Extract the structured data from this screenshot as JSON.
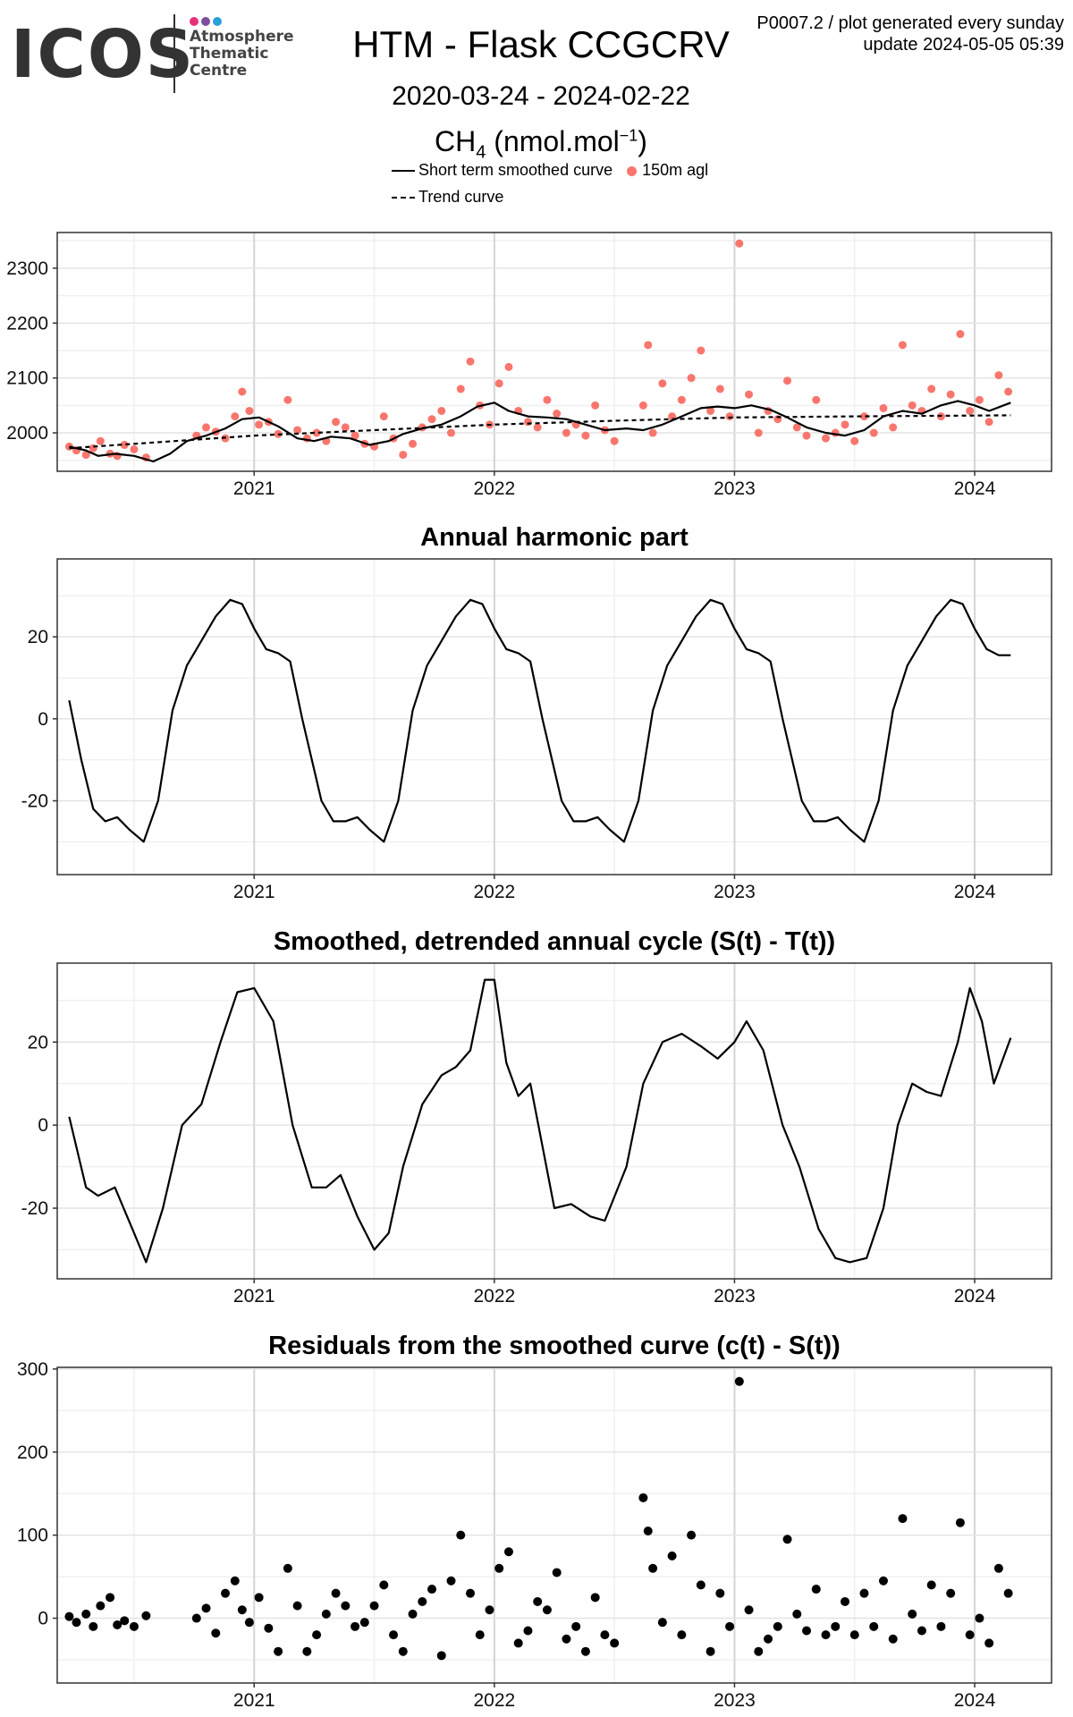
{
  "header": {
    "logo_text": "ICOS",
    "logo_subtitle_1": "Atmosphere",
    "logo_subtitle_2": "Thematic",
    "logo_subtitle_3": "Centre",
    "logo_dot_colors": [
      "#e6317a",
      "#7d4ea0",
      "#2b9fd8"
    ],
    "title": "HTM - Flask CCGCRV",
    "date_range": "2020-03-24 - 2024-02-22",
    "species_main": "CH",
    "species_sub": "4",
    "species_unit": " (nmol.mol",
    "species_sup": "−1",
    "species_close": ")",
    "notice_line1": "P0007.2 / plot generated every sunday",
    "notice_line2": "update  2024-05-05 05:39"
  },
  "legend": {
    "smooth_label": "Short term smoothed curve",
    "points_label": "150m agl",
    "trend_label": "Trend curve",
    "points_color": "#F8766D"
  },
  "chart_data": [
    {
      "type": "scatter",
      "title": "",
      "xlabel": "",
      "ylabel": "",
      "xlim": [
        2020.18,
        2024.32
      ],
      "ylim": [
        1930,
        2365
      ],
      "xticks": [
        2021,
        2022,
        2023,
        2024
      ],
      "xtick_labels": [
        "2021",
        "2022",
        "2023",
        "2024"
      ],
      "yticks": [
        2000,
        2100,
        2200,
        2300
      ],
      "ytick_labels": [
        "2000",
        "2100",
        "2200",
        "2300"
      ],
      "grid": true,
      "series": [
        {
          "name": "150m agl",
          "kind": "points",
          "color": "#F8766D",
          "x": [
            2020.23,
            2020.26,
            2020.3,
            2020.33,
            2020.36,
            2020.4,
            2020.43,
            2020.46,
            2020.5,
            2020.55,
            2020.76,
            2020.8,
            2020.84,
            2020.88,
            2020.92,
            2020.95,
            2020.98,
            2021.02,
            2021.06,
            2021.1,
            2021.14,
            2021.18,
            2021.22,
            2021.26,
            2021.3,
            2021.34,
            2021.38,
            2021.42,
            2021.46,
            2021.5,
            2021.54,
            2021.58,
            2021.62,
            2021.66,
            2021.7,
            2021.74,
            2021.78,
            2021.82,
            2021.86,
            2021.9,
            2021.94,
            2021.98,
            2022.02,
            2022.06,
            2022.1,
            2022.14,
            2022.18,
            2022.22,
            2022.26,
            2022.3,
            2022.34,
            2022.38,
            2022.42,
            2022.46,
            2022.5,
            2022.62,
            2022.64,
            2022.66,
            2022.7,
            2022.74,
            2022.78,
            2022.82,
            2022.86,
            2022.9,
            2022.94,
            2022.98,
            2023.02,
            2023.06,
            2023.1,
            2023.14,
            2023.18,
            2023.22,
            2023.26,
            2023.3,
            2023.34,
            2023.38,
            2023.42,
            2023.46,
            2023.5,
            2023.54,
            2023.58,
            2023.62,
            2023.66,
            2023.7,
            2023.74,
            2023.78,
            2023.82,
            2023.86,
            2023.9,
            2023.94,
            2023.98,
            2024.02,
            2024.06,
            2024.1,
            2024.14
          ],
          "y": [
            1975,
            1968,
            1960,
            1972,
            1985,
            1962,
            1958,
            1978,
            1970,
            1955,
            1995,
            2010,
            2002,
            1990,
            2030,
            2075,
            2040,
            2015,
            2020,
            1998,
            2060,
            2005,
            1990,
            2000,
            1985,
            2020,
            2010,
            1995,
            1980,
            1975,
            2030,
            1990,
            1960,
            1980,
            2010,
            2025,
            2040,
            2000,
            2080,
            2130,
            2050,
            2015,
            2090,
            2120,
            2040,
            2020,
            2010,
            2060,
            2035,
            2000,
            2015,
            1995,
            2050,
            2005,
            1985,
            2050,
            2160,
            2000,
            2090,
            2030,
            2060,
            2100,
            2150,
            2040,
            2080,
            2030,
            2345,
            2070,
            2000,
            2040,
            2025,
            2095,
            2010,
            1995,
            2060,
            1990,
            2000,
            2015,
            1985,
            2030,
            2000,
            2045,
            2010,
            2160,
            2050,
            2040,
            2080,
            2030,
            2070,
            2180,
            2040,
            2060,
            2020,
            2105,
            2075
          ]
        },
        {
          "name": "Short term smoothed curve",
          "kind": "line",
          "color": "#000000",
          "x": [
            2020.23,
            2020.3,
            2020.35,
            2020.42,
            2020.5,
            2020.58,
            2020.65,
            2020.72,
            2020.8,
            2020.88,
            2020.95,
            2021.02,
            2021.1,
            2021.18,
            2021.25,
            2021.32,
            2021.4,
            2021.48,
            2021.56,
            2021.62,
            2021.7,
            2021.78,
            2021.86,
            2021.93,
            2022.0,
            2022.06,
            2022.14,
            2022.22,
            2022.3,
            2022.38,
            2022.46,
            2022.55,
            2022.62,
            2022.7,
            2022.78,
            2022.86,
            2022.93,
            2023.0,
            2023.07,
            2023.15,
            2023.22,
            2023.3,
            2023.38,
            2023.46,
            2023.54,
            2023.62,
            2023.7,
            2023.78,
            2023.86,
            2023.93,
            2024.0,
            2024.06,
            2024.15
          ],
          "y": [
            1975,
            1968,
            1958,
            1962,
            1958,
            1948,
            1962,
            1985,
            1995,
            2008,
            2025,
            2028,
            2012,
            1990,
            1985,
            1993,
            1990,
            1978,
            1985,
            1998,
            2008,
            2015,
            2030,
            2048,
            2055,
            2040,
            2030,
            2028,
            2025,
            2015,
            2005,
            2008,
            2005,
            2015,
            2030,
            2045,
            2048,
            2045,
            2050,
            2042,
            2028,
            2010,
            2000,
            1995,
            2005,
            2030,
            2040,
            2035,
            2050,
            2058,
            2050,
            2040,
            2055
          ]
        },
        {
          "name": "Trend curve",
          "kind": "line",
          "dash": true,
          "color": "#000000",
          "x": [
            2020.23,
            2020.6,
            2021.0,
            2021.5,
            2022.0,
            2022.5,
            2023.0,
            2023.5,
            2024.15
          ],
          "y": [
            1972,
            1983,
            1995,
            2005,
            2015,
            2022,
            2028,
            2030,
            2032
          ]
        }
      ]
    },
    {
      "type": "line",
      "title": "Annual harmonic part",
      "xlabel": "",
      "ylabel": "",
      "xlim": [
        2020.18,
        2024.32
      ],
      "ylim": [
        -38,
        39
      ],
      "xticks": [
        2021,
        2022,
        2023,
        2024
      ],
      "xtick_labels": [
        "2021",
        "2022",
        "2023",
        "2024"
      ],
      "yticks": [
        -20,
        0,
        20
      ],
      "ytick_labels": [
        "-20",
        "0",
        "20"
      ],
      "grid": true,
      "series": [
        {
          "name": "",
          "kind": "line",
          "color": "#000000",
          "x": [
            2020.23,
            2020.28,
            2020.33,
            2020.38,
            2020.43,
            2020.48,
            2020.54,
            2020.6,
            2020.66,
            2020.72,
            2020.78,
            2020.84,
            2020.9,
            2020.95,
            2021.0,
            2021.05,
            2021.1,
            2021.15,
            2021.2,
            2021.28,
            2021.33,
            2021.38,
            2021.43,
            2021.48,
            2021.54,
            2021.6,
            2021.66,
            2021.72,
            2021.78,
            2021.84,
            2021.9,
            2021.95,
            2022.0,
            2022.05,
            2022.1,
            2022.15,
            2022.2,
            2022.28,
            2022.33,
            2022.38,
            2022.43,
            2022.48,
            2022.54,
            2022.6,
            2022.66,
            2022.72,
            2022.78,
            2022.84,
            2022.9,
            2022.95,
            2023.0,
            2023.05,
            2023.1,
            2023.15,
            2023.2,
            2023.28,
            2023.33,
            2023.38,
            2023.43,
            2023.48,
            2023.54,
            2023.6,
            2023.66,
            2023.72,
            2023.78,
            2023.84,
            2023.9,
            2023.95,
            2024.0,
            2024.05,
            2024.1,
            2024.15
          ],
          "y": [
            4.5,
            -10,
            -22,
            -25,
            -24,
            -27,
            -30,
            -20,
            2,
            13,
            19,
            25,
            29,
            28,
            22,
            17,
            16,
            14,
            0,
            -20,
            -25,
            -25,
            -24,
            -27,
            -30,
            -20,
            2,
            13,
            19,
            25,
            29,
            28,
            22,
            17,
            16,
            14,
            0,
            -20,
            -25,
            -25,
            -24,
            -27,
            -30,
            -20,
            2,
            13,
            19,
            25,
            29,
            28,
            22,
            17,
            16,
            14,
            0,
            -20,
            -25,
            -25,
            -24,
            -27,
            -30,
            -20,
            2,
            13,
            19,
            25,
            29,
            28,
            22,
            17,
            15.5,
            15.5
          ]
        }
      ]
    },
    {
      "type": "line",
      "title": "Smoothed, detrended annual cycle (S(t) - T(t))",
      "xlabel": "",
      "ylabel": "",
      "xlim": [
        2020.18,
        2024.32
      ],
      "ylim": [
        -37,
        39
      ],
      "xticks": [
        2021,
        2022,
        2023,
        2024
      ],
      "xtick_labels": [
        "2021",
        "2022",
        "2023",
        "2024"
      ],
      "yticks": [
        -20,
        0,
        20
      ],
      "ytick_labels": [
        "-20",
        "0",
        "20"
      ],
      "grid": true,
      "series": [
        {
          "name": "",
          "kind": "line",
          "color": "#000000",
          "x": [
            2020.23,
            2020.3,
            2020.35,
            2020.42,
            2020.5,
            2020.55,
            2020.62,
            2020.7,
            2020.78,
            2020.86,
            2020.93,
            2021.0,
            2021.08,
            2021.16,
            2021.24,
            2021.3,
            2021.36,
            2021.43,
            2021.5,
            2021.56,
            2021.62,
            2021.7,
            2021.78,
            2021.84,
            2021.9,
            2021.96,
            2022.0,
            2022.05,
            2022.1,
            2022.15,
            2022.2,
            2022.25,
            2022.32,
            2022.4,
            2022.46,
            2022.55,
            2022.62,
            2022.7,
            2022.78,
            2022.86,
            2022.93,
            2023.0,
            2023.05,
            2023.12,
            2023.2,
            2023.27,
            2023.35,
            2023.42,
            2023.48,
            2023.55,
            2023.62,
            2023.68,
            2023.74,
            2023.8,
            2023.86,
            2023.93,
            2023.98,
            2024.03,
            2024.08,
            2024.15
          ],
          "y": [
            2,
            -15,
            -17,
            -15,
            -26,
            -33,
            -20,
            0,
            5,
            20,
            32,
            33,
            25,
            0,
            -15,
            -15,
            -12,
            -22,
            -30,
            -26,
            -10,
            5,
            12,
            14,
            18,
            35,
            35,
            15,
            7,
            10,
            -5,
            -20,
            -19,
            -22,
            -23,
            -10,
            10,
            20,
            22,
            19,
            16,
            20,
            25,
            18,
            0,
            -10,
            -25,
            -32,
            -33,
            -32,
            -20,
            0,
            10,
            8,
            7,
            20,
            33,
            25,
            10,
            21
          ]
        }
      ]
    },
    {
      "type": "scatter",
      "title": "Residuals from the smoothed curve (c(t) - S(t))",
      "xlabel": "",
      "ylabel": "",
      "xlim": [
        2020.18,
        2024.32
      ],
      "ylim": [
        -78,
        302
      ],
      "xticks": [
        2021,
        2022,
        2023,
        2024
      ],
      "xtick_labels": [
        "2021",
        "2022",
        "2023",
        "2024"
      ],
      "yticks": [
        0,
        100,
        200,
        300
      ],
      "ytick_labels": [
        "0",
        "100",
        "200",
        "300"
      ],
      "grid": true,
      "series": [
        {
          "name": "",
          "kind": "points",
          "color": "#000000",
          "x": [
            2020.23,
            2020.26,
            2020.3,
            2020.33,
            2020.36,
            2020.4,
            2020.43,
            2020.46,
            2020.5,
            2020.55,
            2020.76,
            2020.8,
            2020.84,
            2020.88,
            2020.92,
            2020.95,
            2020.98,
            2021.02,
            2021.06,
            2021.1,
            2021.14,
            2021.18,
            2021.22,
            2021.26,
            2021.3,
            2021.34,
            2021.38,
            2021.42,
            2021.46,
            2021.5,
            2021.54,
            2021.58,
            2021.62,
            2021.66,
            2021.7,
            2021.74,
            2021.78,
            2021.82,
            2021.86,
            2021.9,
            2021.94,
            2021.98,
            2022.02,
            2022.06,
            2022.1,
            2022.14,
            2022.18,
            2022.22,
            2022.26,
            2022.3,
            2022.34,
            2022.38,
            2022.42,
            2022.46,
            2022.5,
            2022.62,
            2022.64,
            2022.66,
            2022.7,
            2022.74,
            2022.78,
            2022.82,
            2022.86,
            2022.9,
            2022.94,
            2022.98,
            2023.02,
            2023.06,
            2023.1,
            2023.14,
            2023.18,
            2023.22,
            2023.26,
            2023.3,
            2023.34,
            2023.38,
            2023.42,
            2023.46,
            2023.5,
            2023.54,
            2023.58,
            2023.62,
            2023.66,
            2023.7,
            2023.74,
            2023.78,
            2023.82,
            2023.86,
            2023.9,
            2023.94,
            2023.98,
            2024.02,
            2024.06,
            2024.1,
            2024.14
          ],
          "y": [
            2,
            -5,
            5,
            -10,
            15,
            25,
            -8,
            -3,
            -10,
            3,
            0,
            12,
            -18,
            30,
            45,
            10,
            -5,
            25,
            -12,
            -40,
            60,
            15,
            -40,
            -20,
            5,
            30,
            15,
            -10,
            -5,
            15,
            40,
            -20,
            -40,
            5,
            20,
            35,
            -45,
            45,
            100,
            30,
            -20,
            10,
            60,
            80,
            -30,
            -15,
            20,
            10,
            55,
            -25,
            -10,
            -40,
            25,
            -20,
            -30,
            145,
            105,
            60,
            -5,
            75,
            -20,
            100,
            40,
            -40,
            30,
            -10,
            285,
            10,
            -40,
            -25,
            -10,
            95,
            5,
            -15,
            35,
            -20,
            -10,
            20,
            -20,
            30,
            -10,
            45,
            -25,
            120,
            5,
            -15,
            40,
            -10,
            30,
            115,
            -20,
            0,
            -30,
            60,
            30
          ]
        }
      ]
    }
  ]
}
